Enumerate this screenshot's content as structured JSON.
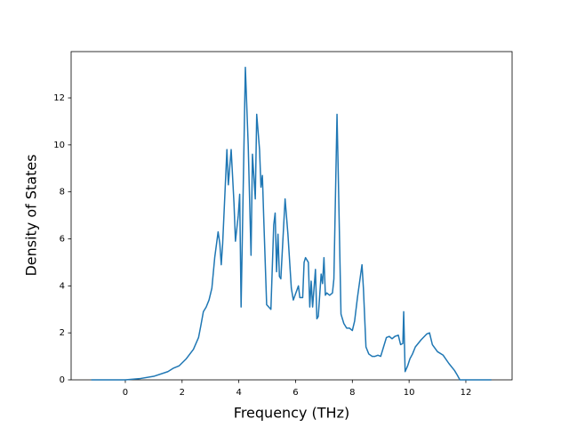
{
  "chart_data": {
    "type": "line",
    "x_label": "Frequency (THz)",
    "y_label": "Density of States",
    "xlim": [
      -1.91,
      13.63
    ],
    "ylim": [
      0,
      13.97
    ],
    "xticks": [
      0,
      2,
      4,
      6,
      8,
      10,
      12
    ],
    "yticks": [
      0,
      2,
      4,
      6,
      8,
      10,
      12
    ],
    "grid": false,
    "series": [
      {
        "color": "#1f77b4",
        "x": [
          -1.2,
          0,
          0.5,
          1.0,
          1.5,
          1.7,
          1.9,
          2.15,
          2.4,
          2.58,
          2.66,
          2.75,
          2.85,
          2.95,
          3.05,
          3.15,
          3.27,
          3.33,
          3.38,
          3.43,
          3.58,
          3.63,
          3.73,
          3.83,
          3.88,
          3.98,
          4.03,
          4.08,
          4.23,
          4.33,
          4.43,
          4.48,
          4.58,
          4.63,
          4.73,
          4.78,
          4.83,
          4.88,
          4.98,
          5.13,
          5.23,
          5.28,
          5.33,
          5.38,
          5.43,
          5.48,
          5.63,
          5.73,
          5.85,
          5.92,
          6.1,
          6.15,
          6.25,
          6.3,
          6.35,
          6.45,
          6.5,
          6.55,
          6.6,
          6.7,
          6.75,
          6.8,
          6.9,
          6.95,
          7.0,
          7.05,
          7.1,
          7.2,
          7.3,
          7.35,
          7.46,
          7.5,
          7.6,
          7.7,
          7.8,
          7.9,
          8.0,
          8.08,
          8.18,
          8.34,
          8.39,
          8.48,
          8.58,
          8.7,
          8.8,
          8.9,
          9.0,
          9.1,
          9.2,
          9.3,
          9.4,
          9.5,
          9.62,
          9.7,
          9.78,
          9.81,
          9.86,
          9.95,
          10.03,
          10.12,
          10.22,
          10.42,
          10.62,
          10.72,
          10.82,
          11.0,
          11.2,
          11.4,
          11.6,
          11.7,
          11.79,
          12.9
        ],
        "values": [
          0,
          0,
          0.05,
          0.15,
          0.35,
          0.5,
          0.6,
          0.9,
          1.3,
          1.8,
          2.3,
          2.9,
          3.1,
          3.4,
          3.9,
          5.2,
          6.3,
          5.8,
          4.9,
          5.8,
          9.8,
          8.3,
          9.8,
          7.5,
          5.9,
          7.0,
          7.9,
          3.1,
          13.3,
          10.0,
          5.3,
          9.6,
          7.7,
          11.3,
          9.8,
          8.2,
          8.7,
          6.8,
          3.2,
          3.0,
          6.6,
          7.1,
          4.6,
          6.2,
          4.4,
          4.3,
          7.7,
          6.2,
          3.9,
          3.4,
          4.0,
          3.5,
          3.5,
          5.0,
          5.2,
          5.0,
          3.1,
          4.2,
          3.1,
          4.7,
          2.6,
          2.7,
          4.5,
          4.1,
          5.2,
          3.6,
          3.7,
          3.6,
          3.7,
          4.3,
          11.3,
          9.0,
          2.8,
          2.4,
          2.2,
          2.2,
          2.1,
          2.5,
          3.5,
          4.9,
          3.9,
          1.4,
          1.1,
          1.0,
          1.0,
          1.05,
          1.0,
          1.4,
          1.8,
          1.85,
          1.75,
          1.85,
          1.9,
          1.5,
          1.55,
          2.9,
          0.35,
          0.6,
          0.9,
          1.1,
          1.4,
          1.7,
          1.95,
          2.0,
          1.5,
          1.2,
          1.05,
          0.7,
          0.4,
          0.2,
          0,
          0
        ]
      }
    ]
  }
}
